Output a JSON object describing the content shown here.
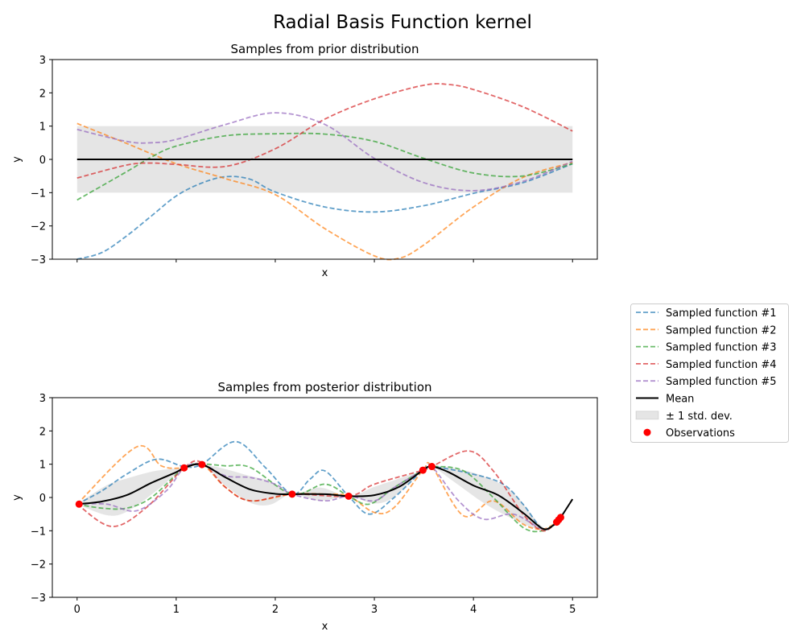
{
  "chart_data": [
    {
      "type": "line",
      "figure_title": "Radial Basis Function kernel",
      "title": "Samples from prior distribution",
      "xlabel": "x",
      "ylabel": "y",
      "xlim": [
        -0.25,
        5.25
      ],
      "ylim": [
        -3,
        3
      ],
      "xticks": [
        0,
        1,
        2,
        3,
        4,
        5
      ],
      "xtick_labels_visible": false,
      "yticks": [
        -3,
        -2,
        -1,
        0,
        1,
        2,
        3
      ],
      "ytick_labels": [
        "−3",
        "−2",
        "−1",
        "0",
        "1",
        "2",
        "3"
      ],
      "grid": false,
      "mean": {
        "x": [
          0,
          5
        ],
        "y": [
          0,
          0
        ],
        "color": "#000000"
      },
      "std_band": {
        "x": [
          0,
          5
        ],
        "lower": [
          -1,
          -1
        ],
        "upper": [
          1,
          1
        ],
        "color": "#000000",
        "opacity": 0.1
      },
      "series": [
        {
          "name": "Sampled function #1",
          "color": "#1f77b4",
          "x": [
            0,
            0.25,
            0.5,
            0.75,
            1.0,
            1.25,
            1.5,
            1.75,
            2.0,
            2.5,
            3.0,
            3.5,
            4.0,
            4.5,
            5.0
          ],
          "y": [
            -3.0,
            -2.8,
            -2.3,
            -1.7,
            -1.1,
            -0.72,
            -0.52,
            -0.6,
            -0.98,
            -1.43,
            -1.58,
            -1.39,
            -1.02,
            -0.7,
            -0.13
          ]
        },
        {
          "name": "Sampled function #2",
          "color": "#ff7f0e",
          "x": [
            0,
            0.5,
            1.0,
            1.5,
            2.0,
            2.5,
            3.0,
            3.25,
            3.5,
            4.0,
            4.5,
            5.0
          ],
          "y": [
            1.08,
            0.48,
            -0.13,
            -0.58,
            -1.06,
            -2.08,
            -2.9,
            -2.97,
            -2.57,
            -1.43,
            -0.54,
            -0.09
          ]
        },
        {
          "name": "Sampled function #3",
          "color": "#2ca02c",
          "x": [
            0,
            0.5,
            0.75,
            1.0,
            1.5,
            2.0,
            2.5,
            3.0,
            3.5,
            4.0,
            4.5,
            5.0
          ],
          "y": [
            -1.22,
            -0.37,
            0.07,
            0.4,
            0.71,
            0.77,
            0.76,
            0.54,
            0.03,
            -0.41,
            -0.5,
            -0.13
          ]
        },
        {
          "name": "Sampled function #4",
          "color": "#d62728",
          "x": [
            0,
            0.5,
            0.75,
            1.0,
            1.5,
            2.0,
            2.5,
            3.0,
            3.5,
            3.75,
            4.0,
            4.5,
            5.0
          ],
          "y": [
            -0.56,
            -0.17,
            -0.11,
            -0.15,
            -0.21,
            0.32,
            1.21,
            1.82,
            2.23,
            2.25,
            2.1,
            1.58,
            0.85
          ]
        },
        {
          "name": "Sampled function #5",
          "color": "#9467bd",
          "x": [
            0,
            0.5,
            0.75,
            1.0,
            1.5,
            2.0,
            2.5,
            3.0,
            3.5,
            4.0,
            4.5,
            5.0
          ],
          "y": [
            0.9,
            0.54,
            0.5,
            0.6,
            1.05,
            1.4,
            1.05,
            0.03,
            -0.7,
            -0.94,
            -0.66,
            -0.06
          ]
        }
      ]
    },
    {
      "type": "line",
      "title": "Samples from posterior distribution",
      "xlabel": "x",
      "ylabel": "y",
      "xlim": [
        -0.25,
        5.25
      ],
      "ylim": [
        -3,
        3
      ],
      "xticks": [
        0,
        1,
        2,
        3,
        4,
        5
      ],
      "xtick_labels": [
        "0",
        "1",
        "2",
        "3",
        "4",
        "5"
      ],
      "yticks": [
        -3,
        -2,
        -1,
        0,
        1,
        2,
        3
      ],
      "ytick_labels": [
        "−3",
        "−2",
        "−1",
        "0",
        "1",
        "2",
        "3"
      ],
      "grid": false,
      "mean": {
        "color": "#000000",
        "x": [
          0,
          0.25,
          0.5,
          0.75,
          1.0,
          1.08,
          1.26,
          1.5,
          1.75,
          2.0,
          2.17,
          2.5,
          2.74,
          3.0,
          3.25,
          3.49,
          3.58,
          3.75,
          4.0,
          4.25,
          4.5,
          4.7,
          4.8,
          4.84,
          4.88,
          5.0
        ],
        "y": [
          -0.2,
          -0.12,
          0.07,
          0.44,
          0.76,
          0.89,
          0.99,
          0.6,
          0.24,
          0.11,
          0.1,
          0.1,
          0.04,
          0.07,
          0.32,
          0.82,
          0.93,
          0.76,
          0.36,
          0.07,
          -0.46,
          -0.94,
          -0.85,
          -0.74,
          -0.6,
          -0.05
        ]
      },
      "std_band": {
        "color": "#000000",
        "opacity": 0.1,
        "x": [
          0,
          0.3,
          0.5,
          0.8,
          1.08,
          1.26,
          1.5,
          1.75,
          1.95,
          2.17,
          2.45,
          2.74,
          3.0,
          3.2,
          3.49,
          3.58,
          3.8,
          4.1,
          4.4,
          4.7,
          4.84,
          5.0
        ],
        "std": [
          0,
          0.45,
          0.5,
          0.3,
          0,
          0,
          0.25,
          0.4,
          0.35,
          0,
          0.2,
          0,
          0.25,
          0.25,
          0,
          0,
          0.2,
          0.4,
          0.4,
          0.05,
          0,
          0
        ]
      },
      "observations": {
        "color": "#ff0000",
        "x": [
          0.02,
          1.08,
          1.26,
          2.17,
          2.74,
          3.49,
          3.58,
          4.84,
          4.86,
          4.88
        ],
        "y": [
          -0.2,
          0.89,
          0.99,
          0.1,
          0.04,
          0.82,
          0.93,
          -0.74,
          -0.67,
          -0.6
        ]
      },
      "series": [
        {
          "name": "Sampled function #1",
          "color": "#1f77b4",
          "x": [
            0,
            0.25,
            0.5,
            0.8,
            1.08,
            1.26,
            1.6,
            1.9,
            2.17,
            2.35,
            2.5,
            2.74,
            2.95,
            3.2,
            3.49,
            3.58,
            4.0,
            4.3,
            4.5,
            4.7,
            4.84
          ],
          "y": [
            -0.2,
            0.2,
            0.7,
            1.15,
            0.93,
            1.0,
            1.68,
            0.9,
            0.1,
            0.55,
            0.8,
            0.04,
            -0.5,
            0.0,
            0.82,
            0.93,
            0.7,
            0.4,
            -0.2,
            -0.95,
            -0.74
          ]
        },
        {
          "name": "Sampled function #2",
          "color": "#ff7f0e",
          "x": [
            0,
            0.6,
            0.85,
            1.08,
            1.26,
            1.5,
            1.75,
            2.17,
            2.5,
            2.74,
            3.0,
            3.2,
            3.49,
            3.58,
            3.9,
            4.2,
            4.5,
            4.7,
            4.84
          ],
          "y": [
            -0.2,
            1.52,
            0.95,
            0.89,
            1.0,
            0.3,
            -0.1,
            0.1,
            0.1,
            0.04,
            -0.45,
            -0.3,
            0.82,
            0.93,
            -0.55,
            -0.1,
            -0.8,
            -0.95,
            -0.74
          ]
        },
        {
          "name": "Sampled function #3",
          "color": "#2ca02c",
          "x": [
            0,
            0.25,
            0.5,
            0.75,
            1.08,
            1.26,
            1.5,
            1.75,
            2.17,
            2.5,
            2.74,
            2.95,
            3.2,
            3.49,
            3.58,
            3.9,
            4.2,
            4.5,
            4.7,
            4.84
          ],
          "y": [
            -0.2,
            -0.32,
            -0.32,
            0.0,
            0.89,
            1.0,
            0.95,
            0.9,
            0.1,
            0.4,
            0.04,
            -0.2,
            0.3,
            0.82,
            0.93,
            0.8,
            0.0,
            -0.9,
            -1.0,
            -0.74
          ]
        },
        {
          "name": "Sampled function #4",
          "color": "#d62728",
          "x": [
            0,
            0.35,
            0.7,
            1.08,
            1.26,
            1.5,
            1.75,
            2.17,
            2.74,
            3.0,
            3.49,
            3.58,
            3.95,
            4.2,
            4.5,
            4.7,
            4.84
          ],
          "y": [
            -0.2,
            -0.87,
            -0.3,
            0.89,
            1.05,
            0.3,
            -0.1,
            0.1,
            0.04,
            0.4,
            0.82,
            0.93,
            1.4,
            0.8,
            -0.5,
            -1.0,
            -0.74
          ]
        },
        {
          "name": "Sampled function #5",
          "color": "#9467bd",
          "x": [
            0,
            0.3,
            0.6,
            0.9,
            1.08,
            1.26,
            1.5,
            1.75,
            2.0,
            2.17,
            2.5,
            2.74,
            3.0,
            3.2,
            3.49,
            3.58,
            3.85,
            4.1,
            4.4,
            4.7,
            4.84
          ],
          "y": [
            -0.2,
            -0.2,
            -0.4,
            0.2,
            0.89,
            1.0,
            0.65,
            0.6,
            0.4,
            0.1,
            -0.1,
            0.04,
            -0.1,
            0.3,
            0.82,
            0.93,
            -0.1,
            -0.65,
            -0.5,
            -0.95,
            -0.74
          ]
        }
      ]
    }
  ],
  "legend": {
    "placement": "right",
    "entries": [
      {
        "label": "Sampled function #1",
        "kind": "dashed",
        "color": "#1f77b4"
      },
      {
        "label": "Sampled function #2",
        "kind": "dashed",
        "color": "#ff7f0e"
      },
      {
        "label": "Sampled function #3",
        "kind": "dashed",
        "color": "#2ca02c"
      },
      {
        "label": "Sampled function #4",
        "kind": "dashed",
        "color": "#d62728"
      },
      {
        "label": "Sampled function #5",
        "kind": "dashed",
        "color": "#9467bd"
      },
      {
        "label": "Mean",
        "kind": "line",
        "color": "#000000"
      },
      {
        "label": "± 1 std. dev.",
        "kind": "patch",
        "color": "#000000"
      },
      {
        "label": "Observations",
        "kind": "marker",
        "color": "#ff0000"
      }
    ]
  }
}
